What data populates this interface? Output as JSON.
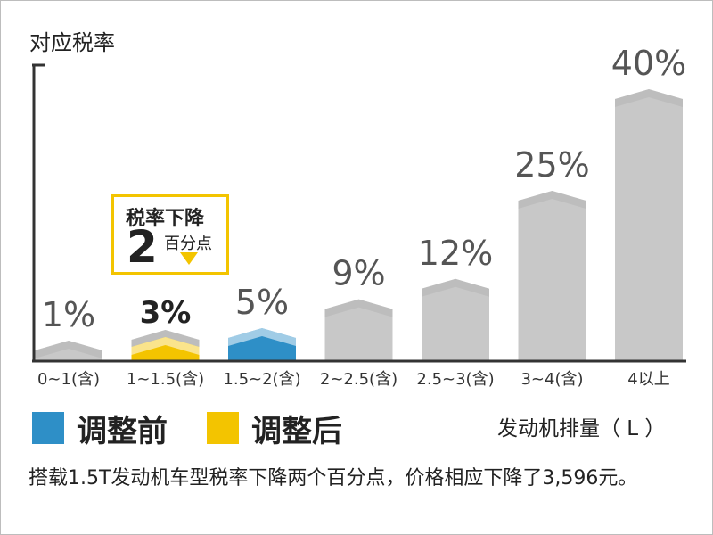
{
  "colors": {
    "bar": "#c8c8c8",
    "bar_shade": "#b4b4b4",
    "before": "#2e8fc7",
    "after": "#f3c400",
    "axis": "#333333"
  },
  "chart_data": {
    "type": "bar",
    "ylabel": "对应税率",
    "xlabel": "发动机排量（ L ）",
    "categories": [
      "0~1(含)",
      "1~1.5(含)",
      "1.5~2(含)",
      "2~2.5(含)",
      "2.5~3(含)",
      "3~4(含)",
      "4以上"
    ],
    "values": [
      1,
      3,
      5,
      9,
      12,
      25,
      40
    ],
    "value_labels": [
      "1%",
      "3%",
      "5%",
      "9%",
      "12%",
      "25%",
      "40%"
    ],
    "ylim": [
      0,
      40
    ],
    "highlights": [
      {
        "category": "1~1.5(含)",
        "previous_value": 5,
        "role": "after"
      },
      {
        "category": "1.5~2(含)",
        "role": "before"
      }
    ],
    "grid": false
  },
  "callout": {
    "title": "税率下降",
    "number": "2",
    "unit": "百分点"
  },
  "legend": [
    {
      "label": "调整前",
      "color": "#2e8fc7"
    },
    {
      "label": "调整后",
      "color": "#f3c400"
    }
  ],
  "caption": "搭载1.5T发动机车型税率下降两个百分点，价格相应下降了3,596元。"
}
